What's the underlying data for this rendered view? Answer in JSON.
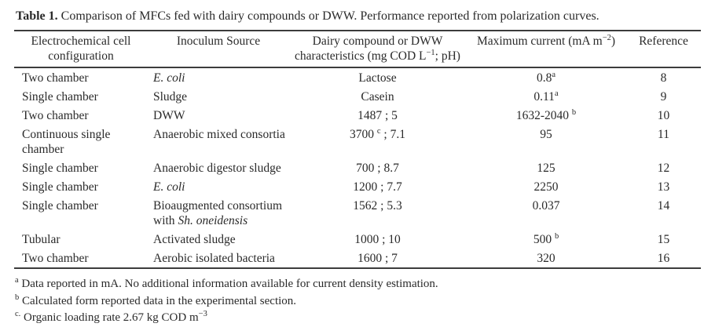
{
  "colors": {
    "text": "#2a2a2a",
    "rule": "#3c3c3c",
    "background": "#ffffff"
  },
  "caption": {
    "segments": [
      {
        "t": "Table 1. ",
        "s": "b"
      },
      {
        "t": "Comparison of MFCs fed with dairy compounds or DWW. Performance reported from polarization curves."
      }
    ]
  },
  "table": {
    "headers": [
      {
        "segments": [
          {
            "t": "Electrochemical cell"
          },
          {
            "s": "br"
          },
          {
            "t": "configuration"
          }
        ]
      },
      {
        "segments": [
          {
            "t": "Inoculum Source"
          }
        ]
      },
      {
        "segments": [
          {
            "t": "Dairy compound or DWW"
          },
          {
            "s": "br"
          },
          {
            "t": "characteristics (mg COD L"
          },
          {
            "t": "−1",
            "s": "sup"
          },
          {
            "t": "; pH)"
          }
        ]
      },
      {
        "segments": [
          {
            "t": "Maximum current (mA m"
          },
          {
            "t": "−2",
            "s": "sup"
          },
          {
            "t": ")"
          }
        ]
      },
      {
        "segments": [
          {
            "t": "Reference"
          }
        ]
      }
    ],
    "rows": [
      {
        "cells": [
          {
            "segments": [
              {
                "t": "Two chamber"
              }
            ]
          },
          {
            "segments": [
              {
                "t": "E. coli",
                "s": "i"
              }
            ]
          },
          {
            "segments": [
              {
                "t": "Lactose"
              }
            ]
          },
          {
            "segments": [
              {
                "t": "0.8"
              },
              {
                "t": "a",
                "s": "sup"
              }
            ]
          },
          {
            "segments": [
              {
                "t": "8"
              }
            ]
          }
        ]
      },
      {
        "cells": [
          {
            "segments": [
              {
                "t": "Single chamber"
              }
            ]
          },
          {
            "segments": [
              {
                "t": "Sludge"
              }
            ]
          },
          {
            "segments": [
              {
                "t": "Casein"
              }
            ]
          },
          {
            "segments": [
              {
                "t": "0.11"
              },
              {
                "t": "a",
                "s": "sup"
              }
            ]
          },
          {
            "segments": [
              {
                "t": "9"
              }
            ]
          }
        ]
      },
      {
        "cells": [
          {
            "segments": [
              {
                "t": "Two chamber"
              }
            ]
          },
          {
            "segments": [
              {
                "t": "DWW"
              }
            ]
          },
          {
            "segments": [
              {
                "t": "1487 ; 5"
              }
            ]
          },
          {
            "segments": [
              {
                "t": "1632-2040 "
              },
              {
                "t": "b",
                "s": "sup"
              }
            ]
          },
          {
            "segments": [
              {
                "t": "10"
              }
            ]
          }
        ]
      },
      {
        "cells": [
          {
            "segments": [
              {
                "t": "Continuous single chamber"
              }
            ]
          },
          {
            "segments": [
              {
                "t": "Anaerobic mixed consortia"
              }
            ]
          },
          {
            "segments": [
              {
                "t": "3700 "
              },
              {
                "t": "c",
                "s": "sup"
              },
              {
                "t": " ; 7.1"
              }
            ]
          },
          {
            "segments": [
              {
                "t": "95"
              }
            ]
          },
          {
            "segments": [
              {
                "t": "11"
              }
            ]
          }
        ]
      },
      {
        "cells": [
          {
            "segments": [
              {
                "t": "Single chamber"
              }
            ]
          },
          {
            "segments": [
              {
                "t": "Anaerobic digestor sludge"
              }
            ]
          },
          {
            "segments": [
              {
                "t": "700 ; 8.7"
              }
            ]
          },
          {
            "segments": [
              {
                "t": "125"
              }
            ]
          },
          {
            "segments": [
              {
                "t": "12"
              }
            ]
          }
        ]
      },
      {
        "cells": [
          {
            "segments": [
              {
                "t": "Single chamber"
              }
            ]
          },
          {
            "segments": [
              {
                "t": "E. coli",
                "s": "i"
              }
            ]
          },
          {
            "segments": [
              {
                "t": "1200 ; 7.7"
              }
            ]
          },
          {
            "segments": [
              {
                "t": "2250"
              }
            ]
          },
          {
            "segments": [
              {
                "t": "13"
              }
            ]
          }
        ]
      },
      {
        "cells": [
          {
            "segments": [
              {
                "t": "Single chamber"
              }
            ]
          },
          {
            "segments": [
              {
                "t": "Bioaugmented consortium with "
              },
              {
                "t": "Sh. oneidensis",
                "s": "i"
              }
            ]
          },
          {
            "segments": [
              {
                "t": "1562 ; 5.3"
              }
            ]
          },
          {
            "segments": [
              {
                "t": "0.037"
              }
            ]
          },
          {
            "segments": [
              {
                "t": "14"
              }
            ]
          }
        ]
      },
      {
        "cells": [
          {
            "segments": [
              {
                "t": "Tubular"
              }
            ]
          },
          {
            "segments": [
              {
                "t": "Activated sludge"
              }
            ]
          },
          {
            "segments": [
              {
                "t": "1000 ; 10"
              }
            ]
          },
          {
            "segments": [
              {
                "t": "500 "
              },
              {
                "t": "b",
                "s": "sup"
              }
            ]
          },
          {
            "segments": [
              {
                "t": "15"
              }
            ]
          }
        ]
      },
      {
        "cells": [
          {
            "segments": [
              {
                "t": "Two chamber"
              }
            ]
          },
          {
            "segments": [
              {
                "t": "Aerobic isolated bacteria"
              }
            ]
          },
          {
            "segments": [
              {
                "t": "1600 ; 7"
              }
            ]
          },
          {
            "segments": [
              {
                "t": "320"
              }
            ]
          },
          {
            "segments": [
              {
                "t": "16"
              }
            ]
          }
        ]
      }
    ]
  },
  "footnotes": [
    {
      "segments": [
        {
          "t": "a",
          "s": "sup"
        },
        {
          "t": " Data reported in mA. No additional information available for current density estimation."
        }
      ]
    },
    {
      "segments": [
        {
          "t": "b",
          "s": "sup"
        },
        {
          "t": " Calculated form reported data in the experimental section."
        }
      ]
    },
    {
      "segments": [
        {
          "t": "c.",
          "s": "sup"
        },
        {
          "t": " Organic loading rate 2.67 kg COD m"
        },
        {
          "t": "−3",
          "s": "sup"
        }
      ]
    }
  ]
}
